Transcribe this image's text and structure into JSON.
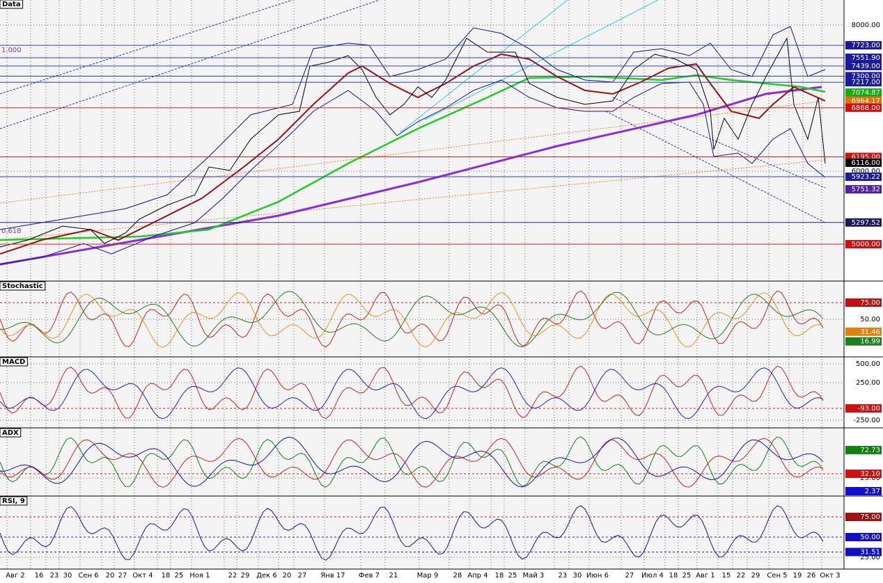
{
  "panels": [
    {
      "title": "Data",
      "ticks": [
        "8000.00",
        "6000.00"
      ],
      "tags": [
        {
          "label": "7723.00",
          "color": "#1a1a9a"
        },
        {
          "label": "7551.90",
          "color": "#1a1a9a"
        },
        {
          "label": "7439.00",
          "color": "#1a1a9a"
        },
        {
          "label": "7300.00",
          "color": "#1a1a9a"
        },
        {
          "label": "7217.00",
          "color": "#1a1a9a"
        },
        {
          "label": "7074.87",
          "color": "#10b010"
        },
        {
          "label": "6964.17",
          "color": "#e07010"
        },
        {
          "label": "6868.00",
          "color": "#d01010"
        },
        {
          "label": "6195.00",
          "color": "#d01010"
        },
        {
          "label": "6116.00",
          "color": "#000000"
        },
        {
          "label": "5923.22",
          "color": "#1a1a9a"
        },
        {
          "label": "5751.32",
          "color": "#5020a0"
        },
        {
          "label": "5297.52",
          "color": "#1a1a60"
        },
        {
          "label": "5000.00",
          "color": "#d01010"
        }
      ]
    },
    {
      "title": "Stochastic",
      "ticks": [
        "50.00"
      ],
      "tags": [
        {
          "label": "75.00",
          "color": "#c01010"
        },
        {
          "label": "31.46",
          "color": "#e08010"
        },
        {
          "label": "16.99",
          "color": "#208020"
        }
      ]
    },
    {
      "title": "MACD",
      "ticks": [
        "500.00",
        "250.00",
        "-250.00"
      ],
      "tags": [
        {
          "label": "-93.00",
          "color": "#d01010"
        }
      ]
    },
    {
      "title": "ADX",
      "ticks": [
        "25.00"
      ],
      "tags": [
        {
          "label": "72.73",
          "color": "#108010"
        },
        {
          "label": "32.10",
          "color": "#d01010"
        },
        {
          "label": "2.37",
          "color": "#1010d0"
        }
      ]
    },
    {
      "title": "RSI, 9",
      "ticks": [
        "25.00"
      ],
      "tags": [
        {
          "label": "75.00",
          "color": "#a01010"
        },
        {
          "label": "50.00",
          "color": "#1010c0"
        },
        {
          "label": "31.51",
          "color": "#1010c0"
        }
      ]
    }
  ],
  "fib": [
    "1.000",
    "0.618"
  ],
  "x_labels": [
    "Авг 2",
    "16",
    "23",
    "30",
    "Сен 6",
    "20",
    "27",
    "Окт 4",
    "18",
    "25",
    "Ноя 1",
    "22",
    "29",
    "Дек 6",
    "20",
    "27",
    "Янв 17",
    "Фев 7",
    "21",
    "Мар 9",
    "28",
    "Апр 4",
    "18",
    "25",
    "Май 3",
    "23",
    "30",
    "Июн 6",
    "27",
    "Июл 4",
    "18",
    "25",
    "Авг 1",
    "15",
    "22",
    "29",
    "Сен 5",
    "19",
    "26",
    "Окт 3"
  ]
}
